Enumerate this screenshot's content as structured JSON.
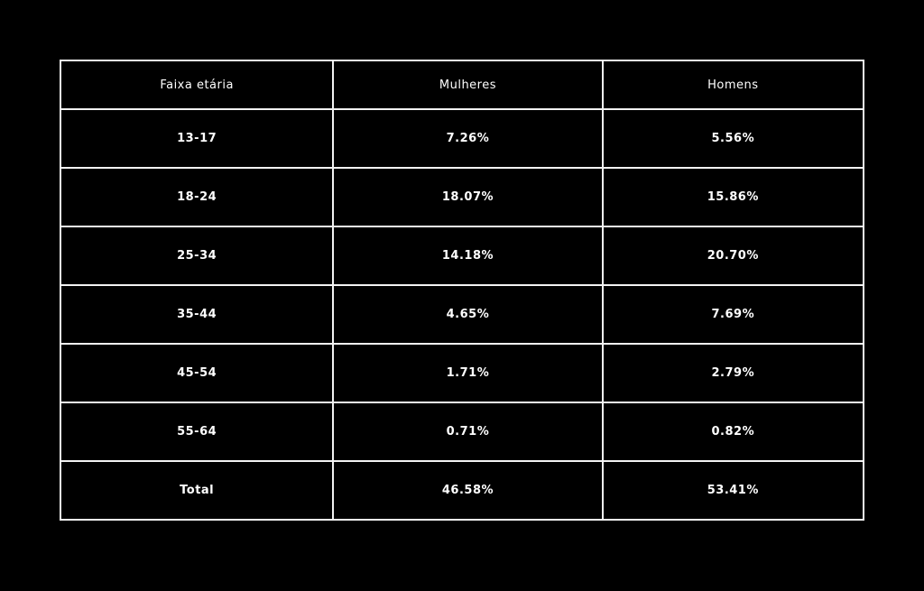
{
  "table": {
    "headers": [
      "Faixa etária",
      "Mulheres",
      "Homens"
    ],
    "rows": [
      [
        "13-17",
        "7.26%",
        "5.56%"
      ],
      [
        "18-24",
        "18.07%",
        "15.86%"
      ],
      [
        "25-34",
        "14.18%",
        "20.70%"
      ],
      [
        "35-44",
        "4.65%",
        "7.69%"
      ],
      [
        "45-54",
        "1.71%",
        "2.79%"
      ],
      [
        "55-64",
        "0.71%",
        "0.82%"
      ],
      [
        "Total",
        "46.58%",
        "53.41%"
      ]
    ]
  }
}
